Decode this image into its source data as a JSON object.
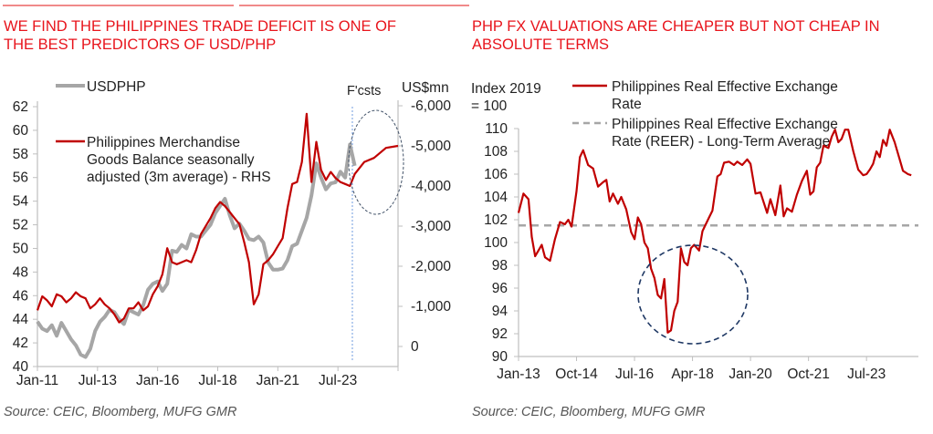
{
  "colors": {
    "title": "#e8141c",
    "red_series": "#c00000",
    "grey_series": "#a6a6a6",
    "reer_avg": "#a6a6a6",
    "circle": "#1f3864",
    "forecast_line": "#6f9be0",
    "axis": "#bfbfbf",
    "text": "#222222",
    "source": "#555555"
  },
  "chart_data": [
    {
      "type": "line",
      "title": "WE FIND THE PHILIPPINES TRADE DEFICIT IS ONE OF THE BEST PREDICTORS OF USD/PHP",
      "source": "Source: CEIC, Bloomberg, MUFG GMR",
      "xlabel": "",
      "ylabel": "",
      "ylabel_right": "US$mn",
      "forecast_label": "F'csts",
      "forecast_start": 2024.1,
      "x_range": [
        2011.0,
        2026.0
      ],
      "ylim": [
        40,
        62
      ],
      "ylim_right": [
        -6000,
        0
      ],
      "right_axis_inverted": true,
      "x_ticks": [
        "Jan-11",
        "Jul-13",
        "Jan-16",
        "Jul-18",
        "Jan-21",
        "Jul-23"
      ],
      "x_tick_values": [
        2011.0,
        2013.5,
        2016.0,
        2018.5,
        2021.0,
        2023.5
      ],
      "y_ticks": [
        "40",
        "42",
        "44",
        "46",
        "48",
        "50",
        "52",
        "54",
        "56",
        "58",
        "60",
        "62"
      ],
      "y_tick_values": [
        40,
        42,
        44,
        46,
        48,
        50,
        52,
        54,
        56,
        58,
        60,
        62
      ],
      "y_ticks_right": [
        "-6,000",
        "-5,000",
        "-4,000",
        "-3,000",
        "-2,000",
        "-1,000",
        "0"
      ],
      "y_tick_right_values": [
        -6000,
        -5000,
        -4000,
        -3000,
        -2000,
        -1000,
        0
      ],
      "grid": false,
      "legend_placement": "top-left",
      "annotations": [
        "dashed ellipse around 2023-2025 forecast region",
        "vertical dotted line at forecast start"
      ],
      "series": [
        {
          "name": "USDPHP",
          "axis": "left",
          "x": [
            2011.0,
            2011.2,
            2011.4,
            2011.6,
            2011.8,
            2012.0,
            2012.2,
            2012.4,
            2012.6,
            2012.8,
            2013.0,
            2013.2,
            2013.4,
            2013.6,
            2013.8,
            2014.0,
            2014.2,
            2014.4,
            2014.6,
            2014.8,
            2015.0,
            2015.2,
            2015.4,
            2015.6,
            2015.8,
            2016.0,
            2016.2,
            2016.4,
            2016.6,
            2016.8,
            2017.0,
            2017.2,
            2017.4,
            2017.6,
            2017.8,
            2018.0,
            2018.2,
            2018.4,
            2018.6,
            2018.8,
            2019.0,
            2019.2,
            2019.4,
            2019.6,
            2019.8,
            2020.0,
            2020.2,
            2020.4,
            2020.6,
            2020.8,
            2021.0,
            2021.2,
            2021.4,
            2021.6,
            2021.8,
            2022.0,
            2022.2,
            2022.4,
            2022.6,
            2022.8,
            2023.0,
            2023.2,
            2023.4,
            2023.6,
            2023.8,
            2024.0,
            2024.2
          ],
          "values": [
            43.8,
            43.2,
            43.0,
            43.5,
            42.6,
            43.7,
            43.0,
            42.3,
            41.8,
            41.0,
            40.8,
            41.5,
            43.0,
            43.8,
            44.2,
            44.8,
            44.6,
            44.0,
            43.6,
            44.8,
            44.6,
            44.4,
            45.2,
            46.5,
            47.0,
            47.2,
            46.4,
            47.0,
            49.8,
            49.7,
            50.3,
            50.0,
            51.2,
            51.0,
            51.0,
            51.5,
            52.0,
            53.0,
            53.6,
            54.2,
            52.8,
            51.7,
            52.1,
            51.5,
            50.8,
            50.7,
            51.0,
            50.5,
            48.8,
            48.2,
            48.2,
            48.3,
            49.0,
            50.2,
            50.4,
            51.5,
            52.6,
            54.5,
            57.2,
            56.0,
            55.0,
            55.5,
            55.6,
            56.5,
            56.0,
            58.8,
            57.0
          ]
        },
        {
          "name": "Philippines Merchandise Goods Balance seasonally adjusted (3m average) - RHS",
          "axis": "right",
          "x": [
            2011.0,
            2011.2,
            2011.4,
            2011.6,
            2011.8,
            2012.0,
            2012.2,
            2012.4,
            2012.6,
            2012.8,
            2013.0,
            2013.2,
            2013.4,
            2013.6,
            2013.8,
            2014.0,
            2014.2,
            2014.4,
            2014.6,
            2014.8,
            2015.0,
            2015.2,
            2015.4,
            2015.6,
            2015.8,
            2016.0,
            2016.2,
            2016.4,
            2016.6,
            2016.8,
            2017.0,
            2017.2,
            2017.4,
            2017.6,
            2017.8,
            2018.0,
            2018.2,
            2018.4,
            2018.6,
            2018.8,
            2019.0,
            2019.2,
            2019.4,
            2019.6,
            2019.8,
            2020.0,
            2020.2,
            2020.4,
            2020.6,
            2020.8,
            2021.0,
            2021.2,
            2021.4,
            2021.6,
            2021.8,
            2022.0,
            2022.2,
            2022.4,
            2022.6,
            2022.8,
            2023.0,
            2023.2,
            2023.4,
            2023.6,
            2023.8,
            2024.0,
            2024.2,
            2024.6,
            2025.0,
            2025.5,
            2026.0
          ],
          "values": [
            -900,
            -1250,
            -1150,
            -1000,
            -1300,
            -1250,
            -1100,
            -1200,
            -1350,
            -1250,
            -1200,
            -950,
            -1050,
            -1200,
            -1050,
            -950,
            -800,
            -600,
            -700,
            -950,
            -950,
            -1100,
            -900,
            -1000,
            -1300,
            -1500,
            -1800,
            -2450,
            -2100,
            -2050,
            -2100,
            -2150,
            -2100,
            -2400,
            -2800,
            -3000,
            -3200,
            -3450,
            -3600,
            -3500,
            -3350,
            -3200,
            -3050,
            -2600,
            -2100,
            -1050,
            -1300,
            -2050,
            -2150,
            -2300,
            -2500,
            -2700,
            -3450,
            -4050,
            -4100,
            -4600,
            -5800,
            -4100,
            -5100,
            -4400,
            -4150,
            -4350,
            -4200,
            -4100,
            -4050,
            -4000,
            -4300,
            -4600,
            -4700,
            -4950,
            -5000
          ]
        }
      ]
    },
    {
      "type": "line",
      "title": "PHP FX VALUATIONS ARE CHEAPER BUT NOT CHEAP IN ABSOLUTE TERMS",
      "source": "Source: CEIC, Bloomberg, MUFG GMR",
      "xlabel": "",
      "ylabel": "Index 2019 = 100",
      "ylabel_line1": "Index 2019",
      "ylabel_line2": "= 100",
      "x_range": [
        2013.0,
        2024.9
      ],
      "ylim": [
        90,
        110
      ],
      "x_ticks": [
        "Jan-13",
        "Oct-14",
        "Jul-16",
        "Apr-18",
        "Jan-20",
        "Oct-21",
        "Jul-23"
      ],
      "x_tick_values": [
        2013.0,
        2014.75,
        2016.5,
        2018.25,
        2020.0,
        2021.75,
        2023.5
      ],
      "y_ticks": [
        "90",
        "92",
        "94",
        "96",
        "98",
        "100",
        "102",
        "104",
        "106",
        "108",
        "110"
      ],
      "y_tick_values": [
        90,
        92,
        94,
        96,
        98,
        100,
        102,
        104,
        106,
        108,
        110
      ],
      "grid": false,
      "legend_placement": "top",
      "annotations": [
        "dashed ellipse around 2017-2019 trough"
      ],
      "series": [
        {
          "name": "Philippines Real Effective Exchange Rate",
          "style": "solid",
          "x": [
            2013.0,
            2013.15,
            2013.3,
            2013.4,
            2013.5,
            2013.6,
            2013.7,
            2013.8,
            2013.95,
            2014.1,
            2014.25,
            2014.4,
            2014.5,
            2014.6,
            2014.75,
            2014.85,
            2014.95,
            2015.1,
            2015.25,
            2015.4,
            2015.55,
            2015.65,
            2015.75,
            2015.85,
            2016.0,
            2016.1,
            2016.25,
            2016.4,
            2016.5,
            2016.6,
            2016.7,
            2016.8,
            2016.9,
            2017.0,
            2017.1,
            2017.2,
            2017.3,
            2017.4,
            2017.5,
            2017.6,
            2017.7,
            2017.8,
            2017.9,
            2018.0,
            2018.1,
            2018.2,
            2018.3,
            2018.45,
            2018.55,
            2018.65,
            2018.75,
            2018.85,
            2019.0,
            2019.1,
            2019.2,
            2019.35,
            2019.5,
            2019.6,
            2019.75,
            2019.9,
            2020.0,
            2020.15,
            2020.3,
            2020.5,
            2020.6,
            2020.75,
            2020.9,
            2021.0,
            2021.1,
            2021.25,
            2021.4,
            2021.55,
            2021.7,
            2021.8,
            2021.9,
            2022.0,
            2022.1,
            2022.2,
            2022.35,
            2022.45,
            2022.55,
            2022.65,
            2022.75,
            2022.85,
            2022.95,
            2023.1,
            2023.25,
            2023.4,
            2023.5,
            2023.6,
            2023.7,
            2023.8,
            2023.9,
            2024.0,
            2024.1,
            2024.2,
            2024.35,
            2024.5,
            2024.6,
            2024.75,
            2024.85
          ],
          "values": [
            102.6,
            104.3,
            103.8,
            100.5,
            98.8,
            99.3,
            99.8,
            98.7,
            98.4,
            100.3,
            101.8,
            101.6,
            102.0,
            101.4,
            104.5,
            107.5,
            108.1,
            106.8,
            106.5,
            104.9,
            105.3,
            105.5,
            103.6,
            104.3,
            103.4,
            104.0,
            102.9,
            100.9,
            100.3,
            102.2,
            101.6,
            100.0,
            99.5,
            97.7,
            96.9,
            95.4,
            95.1,
            96.8,
            92.1,
            92.3,
            94.0,
            94.8,
            99.5,
            98.3,
            98.0,
            99.5,
            99.8,
            99.3,
            101.0,
            101.6,
            102.2,
            102.8,
            105.8,
            106.0,
            107.0,
            107.1,
            106.8,
            107.1,
            106.8,
            107.3,
            106.9,
            104.3,
            104.4,
            102.6,
            103.8,
            102.4,
            105.0,
            102.3,
            103.0,
            102.7,
            104.2,
            105.4,
            106.3,
            104.2,
            104.5,
            106.6,
            107.0,
            108.5,
            108.3,
            109.3,
            109.9,
            108.8,
            109.1,
            109.9,
            109.9,
            108.0,
            106.4,
            105.9,
            106.0,
            106.4,
            106.9,
            108.0,
            107.5,
            109.0,
            108.5,
            109.9,
            108.8,
            107.3,
            106.3,
            106.0,
            105.9
          ]
        },
        {
          "name": "Philippines Real Effective Exchange Rate (REER) - Long-Term Average",
          "style": "dashed",
          "value": 101.5
        }
      ]
    }
  ],
  "legend": {
    "left": {
      "usdphp": "USDPHP",
      "goods_line1": "Philippines Merchandise",
      "goods_line2": "Goods Balance seasonally",
      "goods_line3": "adjusted (3m average) - RHS"
    },
    "right": {
      "reer_line1": "Philippines Real Effective Exchange",
      "reer_line2": "Rate",
      "avg_line1": "Philippines Real Effective Exchange",
      "avg_line2": "Rate (REER) - Long-Term Average"
    }
  },
  "titles": {
    "left_line1": "WE FIND THE PHILIPPINES TRADE DEFICIT IS ONE OF",
    "left_line2": "THE BEST PREDICTORS OF USD/PHP",
    "right_line1": "PHP FX VALUATIONS ARE CHEAPER BUT NOT CHEAP IN",
    "right_line2": "ABSOLUTE TERMS"
  }
}
